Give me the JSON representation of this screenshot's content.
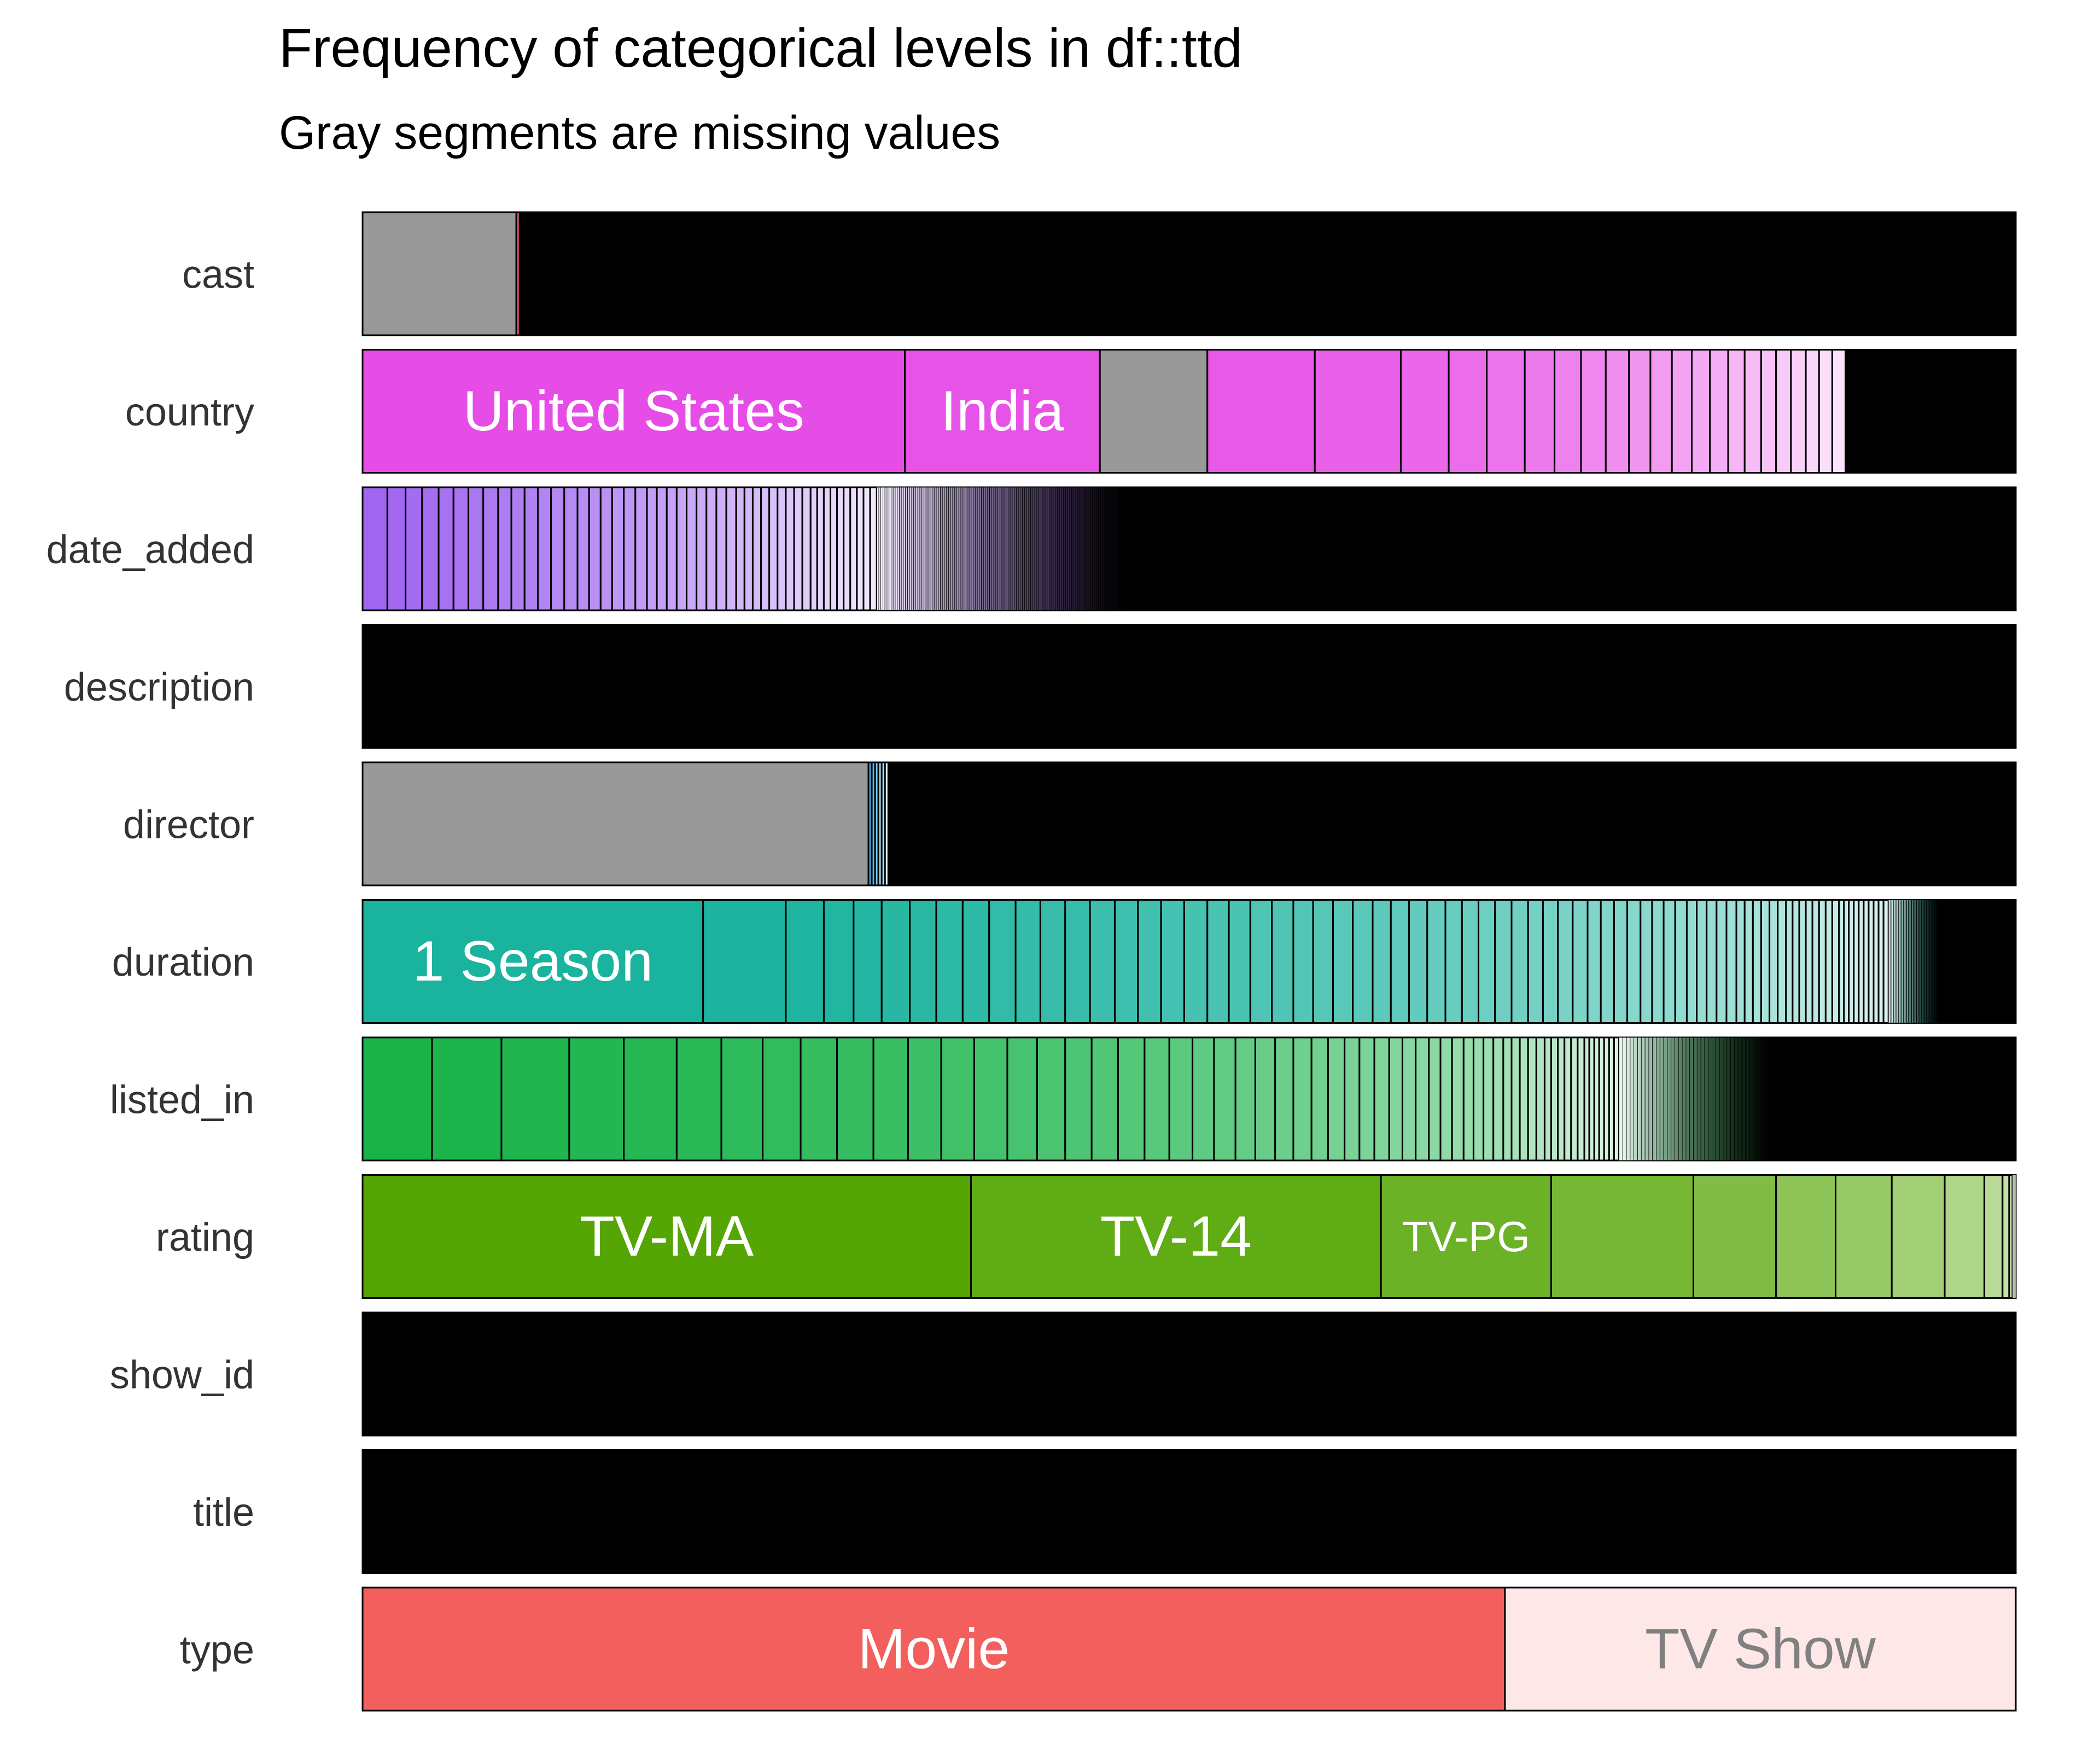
{
  "chart_data": {
    "type": "bar",
    "orientation": "horizontal-stacked-proportion",
    "title": "Frequency of categorical levels in df::ttd",
    "subtitle": "Gray segments are missing values",
    "xlim": [
      0,
      1
    ],
    "missing_color": "#999999",
    "rows": [
      {
        "name": "cast",
        "hue": "#E64C8F",
        "missing": 0.093,
        "segments": [
          0.002
        ],
        "tail_segments": 0,
        "tail_end": 1.0,
        "labels": []
      },
      {
        "name": "country",
        "hue": "#E64CE6",
        "missing": 0.065,
        "segments": [
          0.328,
          0.118,
          0.065,
          0.052,
          0.029,
          0.023,
          0.023,
          0.018,
          0.016,
          0.015,
          0.014,
          0.013,
          0.013,
          0.012,
          0.011,
          0.011,
          0.01,
          0.01,
          0.009,
          0.009,
          0.009,
          0.008,
          0.008,
          0.008
        ],
        "missing_after": 2,
        "tail_segments": 40,
        "tail_end": 0.884,
        "labels": [
          "United States",
          "India"
        ]
      },
      {
        "name": "date_added",
        "hue": "#A066F0",
        "missing": 0,
        "segments": [
          0.015,
          0.011,
          0.01,
          0.01,
          0.009,
          0.009,
          0.009,
          0.009,
          0.008,
          0.008,
          0.008,
          0.008,
          0.008,
          0.008,
          0.007,
          0.007,
          0.007,
          0.007,
          0.007,
          0.007,
          0.006,
          0.006,
          0.006,
          0.006,
          0.006,
          0.006,
          0.006,
          0.006,
          0.006,
          0.005,
          0.005,
          0.005,
          0.005,
          0.005,
          0.005,
          0.005,
          0.005,
          0.005,
          0.004,
          0.004,
          0.004,
          0.004,
          0.004,
          0.004,
          0.004,
          0.004,
          0.004,
          0.004
        ],
        "tail_segments": 120,
        "tail_end": 0.46,
        "labels": []
      },
      {
        "name": "description",
        "hue": "#000000",
        "missing": 0,
        "segments": [],
        "tail_segments": 0,
        "tail_end": 1.0,
        "labels": []
      },
      {
        "name": "director",
        "hue": "#3BA6E6",
        "missing": 0.306,
        "segments": [
          0.002,
          0.002,
          0.002,
          0.002,
          0.002,
          0.002
        ],
        "tail_segments": 0,
        "tail_end": 1.0,
        "labels": []
      },
      {
        "name": "duration",
        "hue": "#1AB39E",
        "missing": 0,
        "segments": [
          0.206,
          0.05,
          0.023,
          0.018,
          0.017,
          0.017,
          0.016,
          0.016,
          0.016,
          0.016,
          0.015,
          0.015,
          0.015,
          0.015,
          0.014,
          0.014,
          0.014,
          0.014,
          0.013,
          0.013,
          0.013,
          0.013,
          0.012,
          0.012,
          0.012,
          0.012,
          0.011,
          0.011,
          0.011,
          0.011,
          0.01,
          0.01,
          0.01,
          0.01,
          0.01,
          0.009,
          0.009,
          0.009,
          0.009,
          0.008,
          0.008,
          0.008,
          0.008,
          0.007,
          0.007,
          0.007,
          0.007,
          0.006,
          0.006,
          0.006,
          0.006,
          0.006,
          0.005,
          0.005,
          0.005,
          0.005,
          0.005,
          0.005,
          0.004,
          0.004,
          0.004,
          0.004,
          0.004,
          0.004,
          0.004,
          0.004,
          0.003,
          0.003,
          0.003,
          0.003,
          0.003,
          0.003,
          0.003,
          0.003,
          0.003,
          0.003
        ],
        "tail_segments": 30,
        "tail_end": 0.953,
        "labels": [
          "1 Season"
        ]
      },
      {
        "name": "listed_in",
        "hue": "#19B34A",
        "missing": 0,
        "segments": [
          0.042,
          0.042,
          0.041,
          0.033,
          0.032,
          0.027,
          0.025,
          0.023,
          0.022,
          0.022,
          0.021,
          0.02,
          0.02,
          0.02,
          0.018,
          0.017,
          0.016,
          0.016,
          0.016,
          0.015,
          0.014,
          0.013,
          0.013,
          0.012,
          0.012,
          0.011,
          0.011,
          0.01,
          0.01,
          0.009,
          0.009,
          0.009,
          0.008,
          0.008,
          0.008,
          0.007,
          0.007,
          0.007,
          0.006,
          0.006,
          0.006,
          0.006,
          0.005,
          0.005,
          0.005,
          0.005,
          0.005,
          0.004,
          0.004,
          0.004,
          0.004,
          0.004,
          0.004,
          0.003,
          0.003,
          0.003,
          0.003,
          0.003,
          0.003,
          0.003
        ],
        "tail_segments": 40,
        "tail_end": 0.85,
        "labels": []
      },
      {
        "name": "rating",
        "hue": "#55A605",
        "missing": 0,
        "segments": [
          0.368,
          0.248,
          0.103,
          0.086,
          0.05,
          0.036,
          0.034,
          0.032,
          0.024,
          0.011,
          0.004,
          0.002,
          0.001,
          0.001
        ],
        "tail_segments": 0,
        "tail_end": 1.0,
        "labels": [
          "TV-MA",
          "TV-14",
          "TV-PG"
        ]
      },
      {
        "name": "show_id",
        "hue": "#000000",
        "missing": 0,
        "segments": [],
        "tail_segments": 0,
        "tail_end": 1.0,
        "labels": []
      },
      {
        "name": "title",
        "hue": "#000000",
        "missing": 0,
        "segments": [],
        "tail_segments": 0,
        "tail_end": 1.0,
        "labels": []
      },
      {
        "name": "type",
        "hue": "#F25F5C",
        "missing": 0,
        "segments": [
          0.691,
          0.309
        ],
        "tail_segments": 0,
        "tail_end": 1.0,
        "labels": [
          "Movie",
          "TV Show"
        ]
      }
    ]
  }
}
